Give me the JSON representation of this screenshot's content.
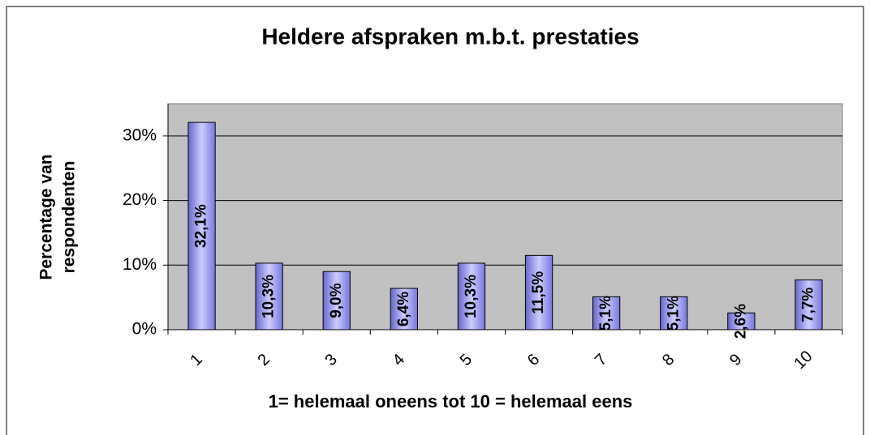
{
  "chart_data": {
    "type": "bar",
    "title": "Heldere afspraken m.b.t. prestaties",
    "x_label": "1= helemaal oneens tot 10 = helemaal eens",
    "y_label": [
      "Percentage van",
      "respondenten"
    ],
    "categories": [
      "1",
      "2",
      "3",
      "4",
      "5",
      "6",
      "7",
      "8",
      "9",
      "10"
    ],
    "values": [
      32.1,
      10.3,
      9.0,
      6.4,
      10.3,
      11.5,
      5.1,
      5.1,
      2.6,
      7.7
    ],
    "value_labels": [
      "32,1%",
      "10,3%",
      "9,0%",
      "6,4%",
      "10,3%",
      "11,5%",
      "5,1%",
      "5,1%",
      "2,6%",
      "7,7%"
    ],
    "color": "#9999ff",
    "ylim": [
      0,
      35
    ],
    "yticks": [
      {
        "value": 0,
        "label": "0%"
      },
      {
        "value": 10,
        "label": "10%"
      },
      {
        "value": 20,
        "label": "20%"
      },
      {
        "value": 30,
        "label": "30%"
      }
    ],
    "grid": true
  }
}
